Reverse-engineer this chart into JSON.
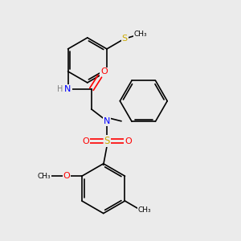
{
  "bg_color": "#ebebeb",
  "bond_color": "#000000",
  "N_color": "#0000ff",
  "O_color": "#ff0000",
  "S_color": "#ccaa00",
  "H_color": "#808080",
  "line_width": 1.2,
  "figsize": [
    3.0,
    3.0
  ],
  "dpi": 100,
  "xlim": [
    0,
    10
  ],
  "ylim": [
    0,
    10
  ]
}
